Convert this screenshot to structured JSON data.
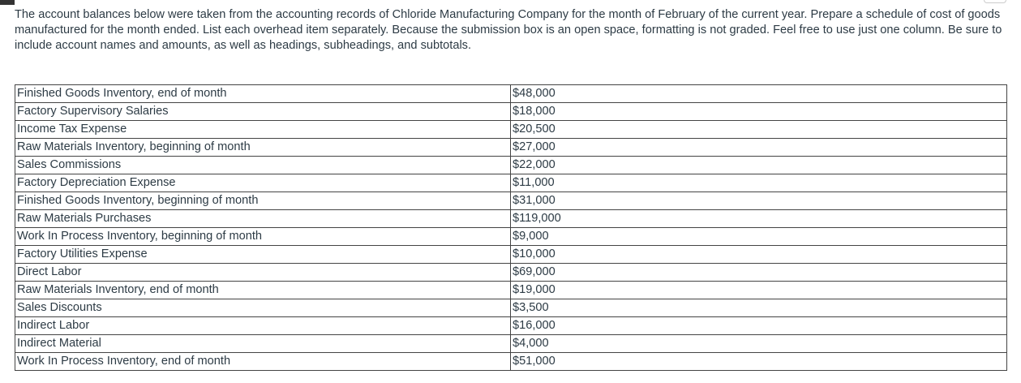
{
  "instructions": "The account balances below were taken from the accounting records of Chloride Manufacturing Company for the month of February of the current year.  Prepare a schedule of cost of goods manufactured for the month ended. List each overhead item separately. Because the submission box is an open space, formatting is not graded. Feel free to use just one column. Be sure to include account names and amounts, as well as headings, subheadings, and subtotals.",
  "table": {
    "rows": [
      [
        "Finished Goods Inventory, end of month",
        "$48,000"
      ],
      [
        "Factory Supervisory Salaries",
        "$18,000"
      ],
      [
        "Income Tax Expense",
        "$20,500"
      ],
      [
        "Raw Materials Inventory, beginning of month",
        "$27,000"
      ],
      [
        "Sales Commissions",
        "$22,000"
      ],
      [
        "Factory Depreciation Expense",
        "$11,000"
      ],
      [
        "Finished Goods Inventory, beginning of month",
        "$31,000"
      ],
      [
        "Raw Materials Purchases",
        "$119,000"
      ],
      [
        "Work In Process Inventory, beginning of month",
        "$9,000"
      ],
      [
        "Factory Utilities Expense",
        "$10,000"
      ],
      [
        "Direct Labor",
        "$69,000"
      ],
      [
        "Raw Materials Inventory, end of month",
        "$19,000"
      ],
      [
        "Sales Discounts",
        "$3,500"
      ],
      [
        "Indirect Labor",
        "$16,000"
      ],
      [
        "Indirect Material",
        "$4,000"
      ],
      [
        "Work In Process Inventory, end of month",
        "$51,000"
      ]
    ]
  }
}
